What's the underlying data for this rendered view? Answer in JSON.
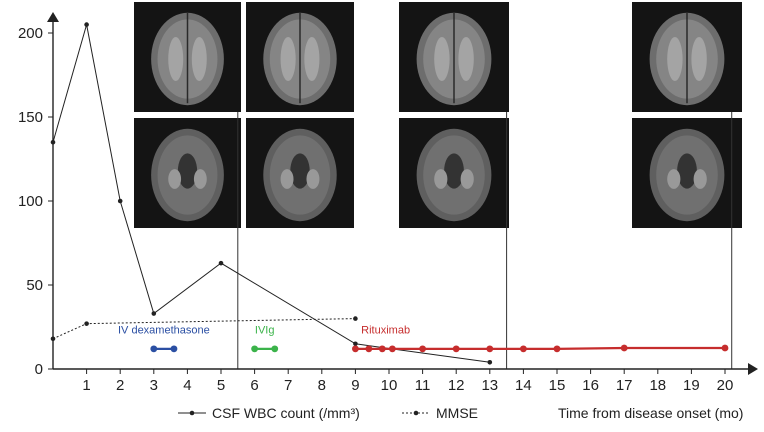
{
  "chart_data": {
    "type": "line",
    "x_ticks": [
      1,
      2,
      3,
      4,
      5,
      6,
      7,
      8,
      9,
      10,
      11,
      12,
      13,
      14,
      15,
      16,
      17,
      18,
      19,
      20
    ],
    "y_ticks": [
      0,
      50,
      100,
      150,
      200
    ],
    "xlim": [
      0,
      20.2
    ],
    "ylim": [
      0,
      205
    ],
    "xlabel": "Time from disease onset (mo)",
    "series": [
      {
        "name": "CSF WBC count (/mm³)",
        "style": "solid",
        "color": "#222222",
        "x": [
          0,
          1,
          2,
          3,
          5,
          9,
          13
        ],
        "y": [
          135,
          205,
          100,
          33,
          63,
          15,
          4
        ]
      },
      {
        "name": "MMSE",
        "style": "dashed",
        "color": "#222222",
        "x": [
          0,
          1,
          9
        ],
        "y": [
          18,
          27,
          30
        ]
      }
    ],
    "treatments": [
      {
        "label": "IV dexamethasone",
        "color": "#2b4fa3",
        "x": [
          3,
          3.6
        ],
        "y": 12,
        "label_x": 3.3,
        "label_y": 21
      },
      {
        "label": "IVIg",
        "color": "#3bb34a",
        "x": [
          6,
          6.6
        ],
        "y": 12,
        "label_x": 6.3,
        "label_y": 21
      },
      {
        "label": "Rituximab",
        "color": "#c62d2d",
        "x": [
          9,
          9.4,
          9.8,
          10.1,
          11,
          12,
          13,
          14,
          15,
          17,
          20
        ],
        "y": [
          12,
          12,
          12,
          12,
          12,
          12,
          12,
          12,
          12,
          12.5,
          12.5
        ],
        "label_x": 9.9,
        "label_y": 21
      }
    ],
    "grid": false,
    "legend": "bottom",
    "mri_timepoints": [
      5.5,
      13.5,
      20.2
    ]
  }
}
